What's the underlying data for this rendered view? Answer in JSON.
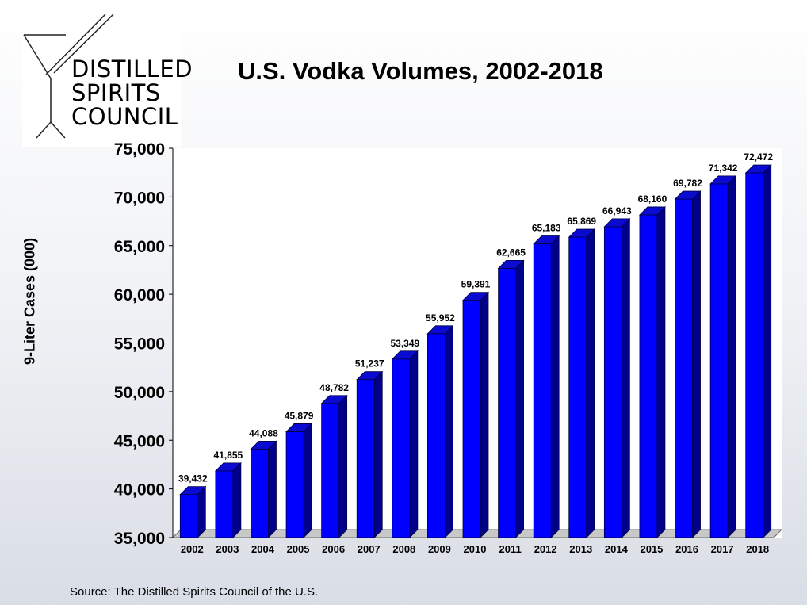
{
  "logo": {
    "lines": [
      "DISTILLED",
      "SPIRITS",
      "COUNCIL"
    ]
  },
  "source": "Source:  The Distilled Spirits Council of the U.S.",
  "colors": {
    "bar_front": "#0000ff",
    "bar_side": "#00008b",
    "bar_top": "#0a0ad0",
    "plot_bg": "#ffffff"
  },
  "chart_data": {
    "type": "bar",
    "title": "U.S. Vodka Volumes, 2002-2018",
    "xlabel": "",
    "ylabel": "9-Liter Cases (000)",
    "ylim": [
      35000,
      75000
    ],
    "yticks": [
      35000,
      40000,
      45000,
      50000,
      55000,
      60000,
      65000,
      70000,
      75000
    ],
    "ytick_labels": [
      "35,000",
      "40,000",
      "45,000",
      "50,000",
      "55,000",
      "60,000",
      "65,000",
      "70,000",
      "75,000"
    ],
    "grid": false,
    "legend": "none",
    "categories": [
      "2002",
      "2003",
      "2004",
      "2005",
      "2006",
      "2007",
      "2008",
      "2009",
      "2010",
      "2011",
      "2012",
      "2013",
      "2014",
      "2015",
      "2016",
      "2017",
      "2018"
    ],
    "values": [
      39432,
      41855,
      44088,
      45879,
      48782,
      51237,
      53349,
      55952,
      59391,
      62665,
      65183,
      65869,
      66943,
      68160,
      69782,
      71342,
      72472
    ],
    "value_labels": [
      "39,432",
      "41,855",
      "44,088",
      "45,879",
      "48,782",
      "51,237",
      "53,349",
      "55,952",
      "59,391",
      "62,665",
      "65,183",
      "65,869",
      "66,943",
      "68,160",
      "69,782",
      "71,342",
      "72,472"
    ]
  }
}
